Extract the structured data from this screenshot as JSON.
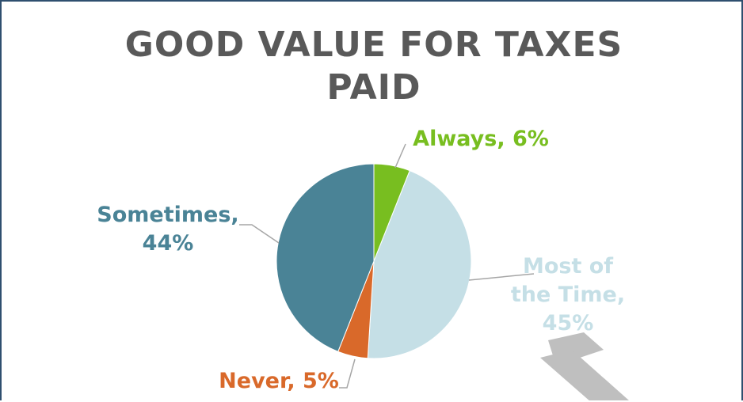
{
  "chart_data": {
    "type": "pie",
    "title": "GOOD VALUE FOR TAXES PAID",
    "values": [
      6,
      45,
      5,
      44
    ],
    "value_labels": [
      "Always, 6%",
      "Most of the Time, 45%",
      "Never, 5%",
      "Sometimes, 44%"
    ],
    "colors": [
      "#78be20",
      "#c5dfe6",
      "#d9692a",
      "#4a8396"
    ]
  }
}
